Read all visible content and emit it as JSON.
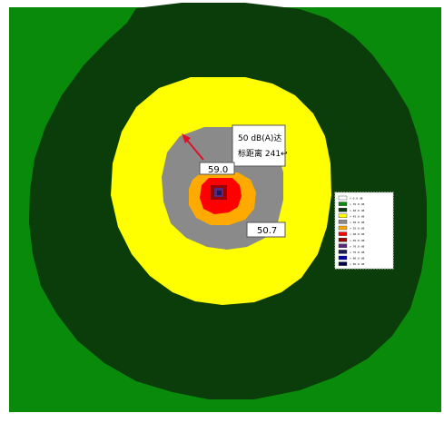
{
  "colors": {
    "outer_green": "#0a8a0a",
    "dark_green": "#0b3d0b",
    "yellow": "#ffff00",
    "gray": "#8a8a8a",
    "orange": "#ffaa00",
    "red": "#ff0000",
    "dark_red": "#990000",
    "purple": "#5a2a7a",
    "navy": "#1a1a5a",
    "arrow": "#e0102a"
  },
  "callout": {
    "line1": "50 dB(A)达",
    "line2": "标距离 241↩"
  },
  "labels": {
    "center_value": "59.0",
    "gray_value": "50.7"
  },
  "legend": {
    "entries": [
      {
        "color": "#ffffff",
        "label": "> 0.0 dB"
      },
      {
        "color": "#0a8a0a",
        "label": "> 35.0 dB"
      },
      {
        "color": "#0b3d0b",
        "label": "> 40.0 dB"
      },
      {
        "color": "#ffff00",
        "label": "> 45.0 dB"
      },
      {
        "color": "#8a8a8a",
        "label": "> 50.0 dB"
      },
      {
        "color": "#ffaa00",
        "label": "> 55.0 dB"
      },
      {
        "color": "#ff0000",
        "label": "> 60.0 dB"
      },
      {
        "color": "#990000",
        "label": "> 65.0 dB"
      },
      {
        "color": "#5a2a7a",
        "label": "> 70.0 dB"
      },
      {
        "color": "#1a1a5a",
        "label": "> 75.0 dB"
      },
      {
        "color": "#0000aa",
        "label": "> 80.0 dB"
      },
      {
        "color": "#000044",
        "label": "> 85.0 dB"
      }
    ]
  }
}
